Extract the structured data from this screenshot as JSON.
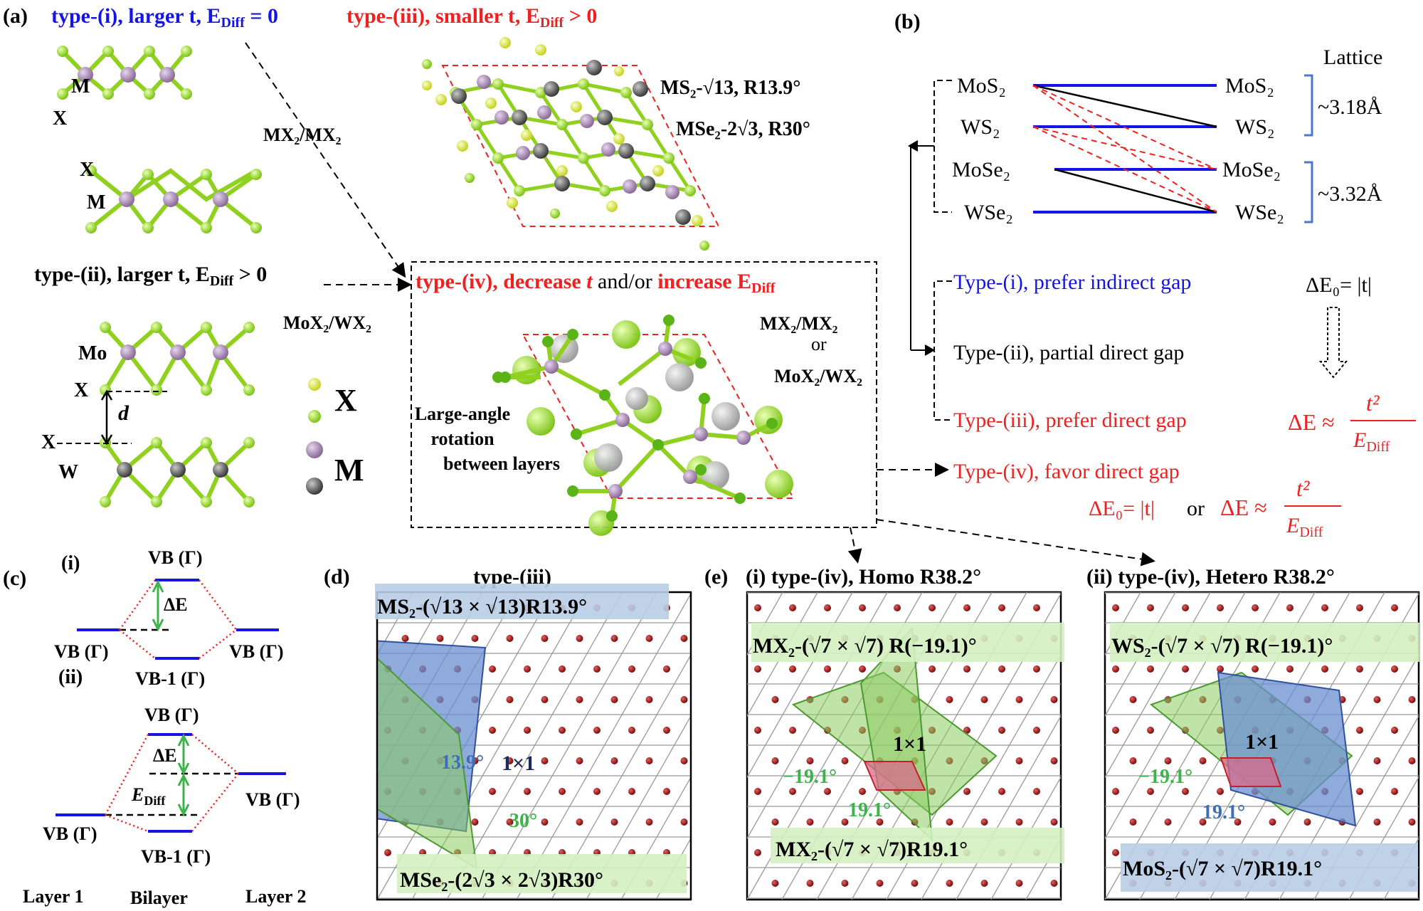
{
  "panels": {
    "a": "(a)",
    "b": "(b)",
    "c": "(c)",
    "d": "(d)",
    "e": "(e)"
  },
  "panel_a": {
    "type_i_title": "type-(i), larger t, E",
    "type_i_sub": "Diff",
    "type_i_eq": " = 0",
    "type_iii_title": "type-(iii), smaller t, E",
    "type_iii_sub": "Diff",
    "type_iii_eq": " > 0",
    "type_ii_title": "type-(ii), larger t, E",
    "type_ii_sub": "Diff",
    "type_ii_eq": " > 0",
    "type_iv_a": "type-(iv), decrease ",
    "type_iv_t": "t",
    "type_iv_and": " and/or ",
    "type_iv_inc": "increase E",
    "type_iv_sub": "Diff",
    "atom_labels": {
      "M": "M",
      "X": "X",
      "Mo": "Mo",
      "W": "W",
      "d": "d"
    },
    "mx2_mx2": "MX₂/MX₂",
    "mox2_wx2": "MoX₂/WX₂",
    "legend_X": "X",
    "legend_M": "M",
    "ms2_label": "MS₂-√13,  R13.9°",
    "mse2_label": "MSe₂-2√3,  R30°",
    "iv_right_1": "MX₂/MX₂",
    "iv_right_or": "or",
    "iv_right_2": "MoX₂/WX₂",
    "rotation_1": "Large-angle",
    "rotation_2": "rotation",
    "rotation_3": "between layers"
  },
  "panel_b": {
    "left_layers": [
      "MoS₂",
      "WS₂",
      "MoSe₂",
      "WSe₂"
    ],
    "right_layers": [
      "MoS₂",
      "WS₂",
      "MoSe₂",
      "WSe₂"
    ],
    "lattice_title": "Lattice",
    "lattice_1": "~3.18Å",
    "lattice_2": "~3.32Å",
    "type_i": "Type-(i), prefer indirect gap",
    "type_ii": "Type-(ii), partial direct gap",
    "type_iii": "Type-(iii), prefer direct gap",
    "type_iv": "Type-(iv),  favor direct gap",
    "de0": "ΔE₀= |t|",
    "de_approx": "ΔE ≈",
    "t2": "t²",
    "ediff": "E",
    "ediff_sub": "Diff",
    "or_text": "or",
    "de0_red": "ΔE₀= |t|"
  },
  "panel_c": {
    "i": "(i)",
    "ii": "(ii)",
    "vb_gamma": "VB (Γ)",
    "vb1_gamma": "VB-1 (Γ)",
    "delta_e": "ΔE",
    "ediff": "E",
    "ediff_sub": "Diff",
    "layer1": "Layer 1",
    "bilayer": "Bilayer",
    "layer2": "Layer 2"
  },
  "panel_d": {
    "title": "type-(iii)",
    "top_label": "MS₂-(√13 × √13)R13.9°",
    "bottom_label": "MSe₂-(2√3 × 2√3)R30°",
    "unit": "1×1",
    "angle1": "13.9°",
    "angle2": "30°"
  },
  "panel_e": {
    "i_title": "(i)  type-(iv), Homo R38.2°",
    "ii_title": "(ii)  type-(iv), Hetero R38.2°",
    "i_top": "MX₂-(√7 × √7) R(−19.1)°",
    "i_bottom": "MX₂-(√7 × √7)R19.1°",
    "ii_top": "WS₂-(√7 × √7) R(−19.1)°",
    "ii_bottom": "MoS₂-(√7 × √7)R19.1°",
    "unit": "1×1",
    "neg_angle": "−19.1°",
    "pos_angle": "19.1°"
  },
  "colors": {
    "blue": "#1414e6",
    "red": "#ee2020",
    "green_atom": "#8fd11e",
    "purple_atom": "#9a7aa6",
    "gray_atom": "#5a5a5a",
    "yellow_atom": "#e4ee40",
    "green_text": "#3cb44b",
    "steel_blue": "#3d6fb5"
  }
}
